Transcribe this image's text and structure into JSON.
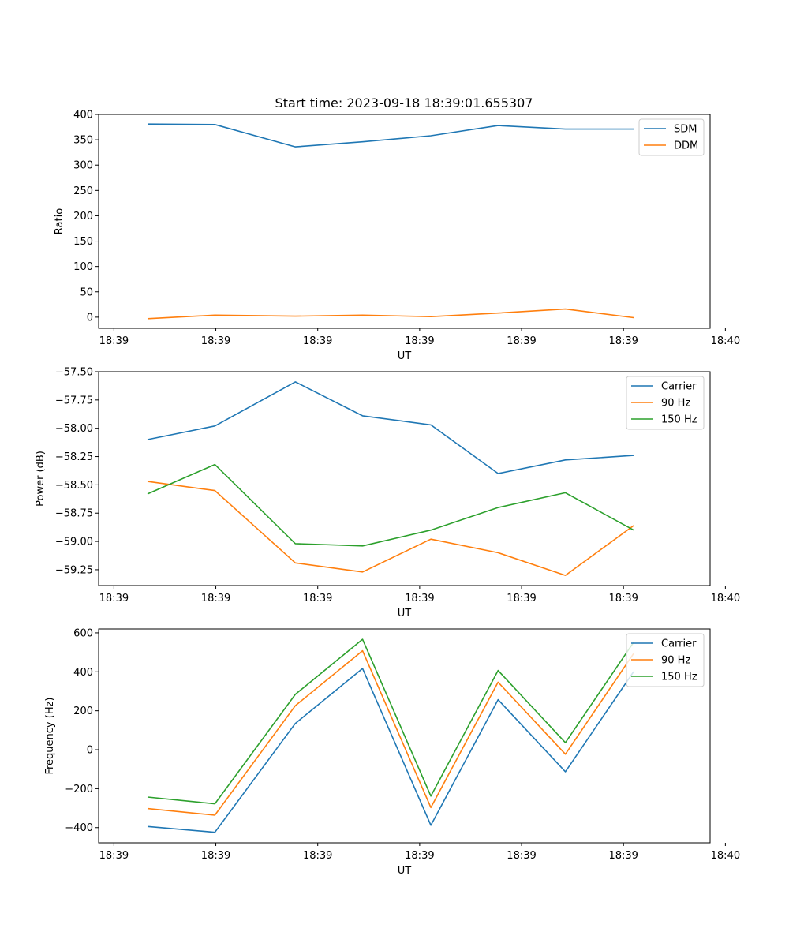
{
  "figure_title": "Start time: 2023-09-18 18:39:01.655307",
  "colors": {
    "blue": "#1f77b4",
    "orange": "#ff7f0e",
    "green": "#2ca02c"
  },
  "chart_data": [
    {
      "type": "line",
      "title": "Start time: 2023-09-18 18:39:01.655307",
      "xlabel": "UT",
      "ylabel": "Ratio",
      "xlim": [
        -0.15,
        5.85
      ],
      "x": [
        0.33,
        0.99,
        1.78,
        2.44,
        3.11,
        3.77,
        4.43,
        5.1
      ],
      "xticks": [
        0,
        1,
        2,
        3,
        4,
        5,
        6
      ],
      "xtick_labels": [
        "18:39",
        "18:39",
        "18:39",
        "18:39",
        "18:39",
        "18:39",
        "18:40"
      ],
      "ylim": [
        -22,
        400
      ],
      "yticks": [
        0,
        50,
        100,
        150,
        200,
        250,
        300,
        350,
        400
      ],
      "ytick_labels": [
        "0",
        "50",
        "100",
        "150",
        "200",
        "250",
        "300",
        "350",
        "400"
      ],
      "legend_position": "top-right",
      "series": [
        {
          "name": "SDM",
          "color": "#1f77b4",
          "values": [
            381,
            380,
            336,
            346,
            358,
            378,
            371,
            371
          ]
        },
        {
          "name": "DDM",
          "color": "#ff7f0e",
          "values": [
            -3,
            4,
            2,
            4,
            1,
            8,
            16,
            -1
          ]
        }
      ]
    },
    {
      "type": "line",
      "xlabel": "UT",
      "ylabel": "Power (dB)",
      "xlim": [
        -0.15,
        5.85
      ],
      "x": [
        0.33,
        0.99,
        1.78,
        2.44,
        3.11,
        3.77,
        4.43,
        5.1
      ],
      "xticks": [
        0,
        1,
        2,
        3,
        4,
        5,
        6
      ],
      "xtick_labels": [
        "18:39",
        "18:39",
        "18:39",
        "18:39",
        "18:39",
        "18:39",
        "18:40"
      ],
      "ylim": [
        -59.39,
        -57.5
      ],
      "yticks": [
        -57.5,
        -57.75,
        -58.0,
        -58.25,
        -58.5,
        -58.75,
        -59.0,
        -59.25
      ],
      "ytick_labels": [
        "−57.50",
        "−57.75",
        "−58.00",
        "−58.25",
        "−58.50",
        "−58.75",
        "−59.00",
        "−59.25"
      ],
      "legend_position": "top-right",
      "series": [
        {
          "name": "Carrier",
          "color": "#1f77b4",
          "values": [
            -58.1,
            -57.98,
            -57.59,
            -57.89,
            -57.97,
            -58.4,
            -58.28,
            -58.24
          ]
        },
        {
          "name": "90 Hz",
          "color": "#ff7f0e",
          "values": [
            -58.47,
            -58.55,
            -59.19,
            -59.27,
            -58.98,
            -59.1,
            -59.3,
            -58.86
          ]
        },
        {
          "name": "150 Hz",
          "color": "#2ca02c",
          "values": [
            -58.58,
            -58.32,
            -59.02,
            -59.04,
            -58.9,
            -58.7,
            -58.57,
            -58.9
          ]
        }
      ]
    },
    {
      "type": "line",
      "xlabel": "UT",
      "ylabel": "Frequency (Hz)",
      "xlim": [
        -0.15,
        5.85
      ],
      "x": [
        0.33,
        0.99,
        1.78,
        2.44,
        3.11,
        3.77,
        4.43,
        5.1
      ],
      "xticks": [
        0,
        1,
        2,
        3,
        4,
        5,
        6
      ],
      "xtick_labels": [
        "18:39",
        "18:39",
        "18:39",
        "18:39",
        "18:39",
        "18:39",
        "18:40"
      ],
      "ylim": [
        -478,
        620
      ],
      "yticks": [
        600,
        400,
        200,
        0,
        -200,
        -400
      ],
      "ytick_labels": [
        "600",
        "400",
        "200",
        "0",
        "−200",
        "−400"
      ],
      "legend_position": "top-right",
      "series": [
        {
          "name": "Carrier",
          "color": "#1f77b4",
          "values": [
            -394,
            -424,
            135,
            417,
            -388,
            257,
            -113,
            401
          ]
        },
        {
          "name": "90 Hz",
          "color": "#ff7f0e",
          "values": [
            -302,
            -336,
            226,
            508,
            -297,
            347,
            -23,
            494
          ]
        },
        {
          "name": "150 Hz",
          "color": "#2ca02c",
          "values": [
            -243,
            -278,
            284,
            567,
            -238,
            407,
            36,
            552
          ]
        }
      ]
    }
  ]
}
